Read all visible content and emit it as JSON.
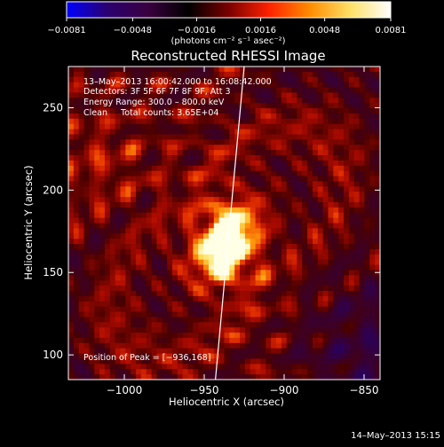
{
  "chart_data": {
    "type": "heatmap",
    "title": "Reconstructed RHESSI Image",
    "xlabel": "Heliocentric X (arcsec)",
    "ylabel": "Heliocentric Y (arcsec)",
    "xlim": [
      -1035,
      -840
    ],
    "ylim": [
      85,
      275
    ],
    "x_ticks": [
      -1000,
      -950,
      -900,
      -850
    ],
    "y_ticks": [
      100,
      150,
      200,
      250
    ],
    "x_tick_labels": [
      "−1000",
      "−950",
      "−900",
      "−850"
    ],
    "y_tick_labels": [
      "100",
      "150",
      "200",
      "250"
    ],
    "colorbar": {
      "min": -0.0081,
      "max": 0.0081,
      "ticks": [
        -0.0081,
        -0.0048,
        -0.0016,
        0.0016,
        0.0048,
        0.0081
      ],
      "tick_labels": [
        "−0.0081",
        "−0.0048",
        "−0.0016",
        "0.0016",
        "0.0048",
        "0.0081"
      ],
      "units_label": "(photons cm⁻² s⁻¹ asec⁻²)",
      "colors": [
        "#0000ff",
        "#2a0070",
        "#3a0040",
        "#000000",
        "#7a0000",
        "#ff2200",
        "#ff8c00",
        "#ffe066",
        "#ffffff"
      ]
    },
    "annotations": [
      "13–May–2013 16:00:42.000 to 16:08:42.000",
      "Detectors: 3F 5F 6F 7F 8F 9F, Att 3",
      "Energy Range: 300.0 – 800.0 keV",
      "Clean     Total counts: 3.65E+04"
    ],
    "peak_label": "Position of Peak = [−936,168]",
    "peak": {
      "x": -936,
      "y": 168
    },
    "limb_line": [
      {
        "x": -943,
        "y": 85
      },
      {
        "x": -925,
        "y": 275
      }
    ],
    "grid": false
  },
  "footer": {
    "timestamp": "14–May–2013 15:15"
  },
  "colors": {
    "background": "#000000",
    "text": "#ffffff",
    "limb_line": "#ffffff"
  }
}
